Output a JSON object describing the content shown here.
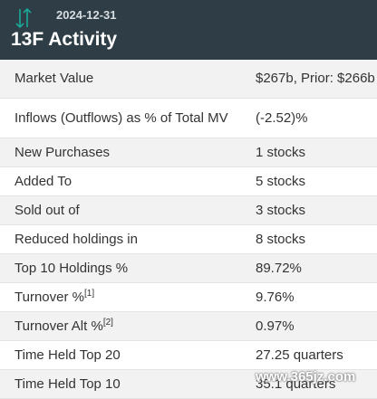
{
  "header": {
    "date": "2024-12-31",
    "title": "13F Activity",
    "icon": "up-down-arrows-icon",
    "accent_color": "#2e3d46",
    "icon_color": "#1aa999"
  },
  "rows": [
    {
      "label": "Market Value",
      "value": "$267b, Prior: $266b"
    },
    {
      "label": "Inflows (Outflows) as % of Total MV",
      "value": "(-2.52)%",
      "negative": true
    },
    {
      "label": "New Purchases",
      "value": "1 stocks"
    },
    {
      "label": "Added To",
      "value": "5 stocks"
    },
    {
      "label": "Sold out of",
      "value": "3 stocks"
    },
    {
      "label": "Reduced holdings in",
      "value": "8 stocks"
    },
    {
      "label": "Top 10 Holdings %",
      "value": "89.72%"
    },
    {
      "label": "Turnover %",
      "sup": "[1]",
      "value": "9.76%"
    },
    {
      "label": "Turnover Alt %",
      "sup": "[2]",
      "value": "0.97%"
    },
    {
      "label": "Time Held Top 20",
      "value": "27.25 quarters"
    },
    {
      "label": "Time Held Top 10",
      "value": "35.1 quarters"
    }
  ],
  "watermark": "www.365jz.com",
  "negative_color": "#d11f1f"
}
